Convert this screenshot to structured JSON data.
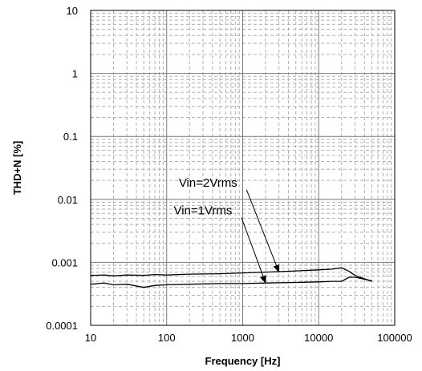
{
  "chart_data": {
    "type": "line",
    "title": "",
    "xlabel": "Frequency [Hz]",
    "ylabel": "THD+N [%]",
    "x_scale": "log",
    "y_scale": "log",
    "xlim": [
      10,
      100000
    ],
    "ylim": [
      0.0001,
      10
    ],
    "grid": true,
    "x_tick_labels": [
      "10",
      "100",
      "1000",
      "10000",
      "100000"
    ],
    "y_tick_labels": [
      "10",
      "1",
      "0.1",
      "0.01",
      "0.001",
      "0.0001"
    ],
    "series": [
      {
        "name": "Vin=2Vrms",
        "color": "#000000",
        "x": [
          10,
          15,
          20,
          30,
          50,
          70,
          100,
          200,
          500,
          1000,
          2000,
          5000,
          10000,
          15000,
          20000,
          25000,
          30000,
          50000
        ],
        "y": [
          0.00062,
          0.00063,
          0.00061,
          0.00063,
          0.00062,
          0.00064,
          0.00063,
          0.00065,
          0.00066,
          0.00068,
          0.0007,
          0.00073,
          0.00076,
          0.00078,
          0.00082,
          0.00072,
          0.00062,
          0.0005
        ]
      },
      {
        "name": "Vin=1Vrms",
        "color": "#000000",
        "x": [
          10,
          15,
          20,
          30,
          50,
          70,
          100,
          200,
          500,
          1000,
          2000,
          5000,
          10000,
          15000,
          20000,
          25000,
          30000,
          50000
        ],
        "y": [
          0.00045,
          0.00047,
          0.00044,
          0.00045,
          0.0004,
          0.00043,
          0.00044,
          0.00045,
          0.00046,
          0.00046,
          0.00047,
          0.00048,
          0.00049,
          0.0005,
          0.0005,
          0.00058,
          0.00058,
          0.00051
        ]
      }
    ],
    "annotations": [
      {
        "text": "Vin=2Vrms",
        "series": "Vin=2Vrms",
        "label_x": 350,
        "label_y": 0.016,
        "arrow_to_x": 3000,
        "arrow_to_y": 0.0007
      },
      {
        "text": "Vin=1Vrms",
        "series": "Vin=1Vrms",
        "label_x": 300,
        "label_y": 0.0058,
        "arrow_to_x": 2000,
        "arrow_to_y": 0.00047
      }
    ]
  }
}
